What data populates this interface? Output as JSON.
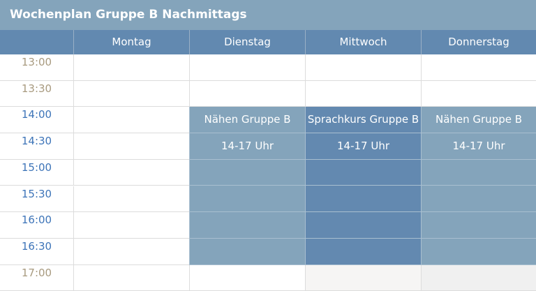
{
  "title": "Wochenplan Gruppe B Nachmittags",
  "days": [
    "Montag",
    "Dienstag",
    "Mittwoch",
    "Donnerstag"
  ],
  "times": [
    "13:00",
    "13:30",
    "14:00",
    "14:30",
    "15:00",
    "15:30",
    "16:00",
    "16:30",
    "17:00"
  ],
  "events": [
    {
      "day": "Dienstag",
      "title": "Nähen Gruppe B",
      "time": "14-17 Uhr",
      "color": "#84a4bb"
    },
    {
      "day": "Mittwoch",
      "title": "Sprachkurs Gruppe B",
      "time": "14-17 Uhr",
      "color": "#6389b0"
    },
    {
      "day": "Donnerstag",
      "title": "Nähen Gruppe B",
      "time": "14-17 Uhr",
      "color": "#84a4bb"
    }
  ],
  "colors": {
    "time_inactive": "#a89a7f",
    "time_active": "#3d74b8",
    "header": "#6289b0",
    "title_bar": "#84a4bb"
  }
}
